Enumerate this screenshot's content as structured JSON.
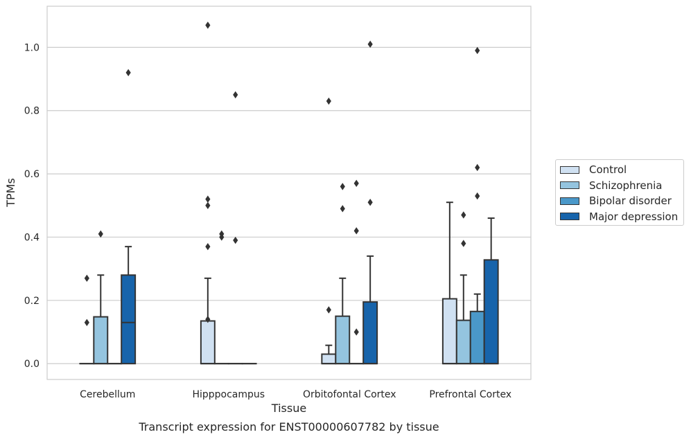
{
  "chart_data": {
    "type": "box",
    "title": "Transcript expression for ENST00000607782 by tissue",
    "xlabel": "Tissue",
    "ylabel": "TPMs",
    "ylim": [
      -0.05,
      1.13
    ],
    "yticks": [
      "0.0",
      "0.2",
      "0.4",
      "0.6",
      "0.8",
      "1.0"
    ],
    "grid": "horizontal",
    "legend_position": "right",
    "categories": [
      "Cerebellum",
      "Hipppocampus",
      "Orbitofontal Cortex",
      "Prefrontal Cortex"
    ],
    "series": [
      {
        "name": "Control",
        "color": "#d0e1f2",
        "boxes": [
          {
            "q1": 0,
            "median": 0,
            "q3": 0,
            "whisker_low": 0,
            "whisker_high": 0,
            "outliers": [
              0.13,
              0.27
            ]
          },
          {
            "q1": 0,
            "median": 0,
            "q3": 0.135,
            "whisker_low": 0,
            "whisker_high": 0.27,
            "outliers": [
              0.14,
              0.37,
              0.5,
              0.52,
              1.07
            ]
          },
          {
            "q1": 0,
            "median": 0,
            "q3": 0.03,
            "whisker_low": 0,
            "whisker_high": 0.058,
            "outliers": [
              0.17,
              0.83
            ]
          },
          {
            "q1": 0,
            "median": 0,
            "q3": 0.205,
            "whisker_low": 0,
            "whisker_high": 0.51,
            "outliers": []
          }
        ]
      },
      {
        "name": "Schizophrenia",
        "color": "#94c4df",
        "boxes": [
          {
            "q1": 0,
            "median": 0,
            "q3": 0.148,
            "whisker_low": 0,
            "whisker_high": 0.28,
            "outliers": [
              0.41
            ]
          },
          {
            "q1": 0,
            "median": 0,
            "q3": 0,
            "whisker_low": 0,
            "whisker_high": 0,
            "outliers": [
              0.4,
              0.41
            ]
          },
          {
            "q1": 0,
            "median": 0,
            "q3": 0.15,
            "whisker_low": 0,
            "whisker_high": 0.27,
            "outliers": [
              0.49,
              0.56
            ]
          },
          {
            "q1": 0,
            "median": 0,
            "q3": 0.137,
            "whisker_low": 0,
            "whisker_high": 0.28,
            "outliers": [
              0.38,
              0.47
            ]
          }
        ]
      },
      {
        "name": "Bipolar disorder",
        "color": "#4a98c9",
        "boxes": [
          {
            "q1": 0,
            "median": 0,
            "q3": 0,
            "whisker_low": 0,
            "whisker_high": 0,
            "outliers": []
          },
          {
            "q1": 0,
            "median": 0,
            "q3": 0,
            "whisker_low": 0,
            "whisker_high": 0,
            "outliers": [
              0.39,
              0.85
            ]
          },
          {
            "q1": 0,
            "median": 0,
            "q3": 0,
            "whisker_low": 0,
            "whisker_high": 0,
            "outliers": [
              0.1,
              0.42,
              0.57
            ]
          },
          {
            "q1": 0,
            "median": 0,
            "q3": 0.165,
            "whisker_low": 0,
            "whisker_high": 0.22,
            "outliers": [
              0.53,
              0.62,
              0.99
            ]
          }
        ]
      },
      {
        "name": "Major depression",
        "color": "#1764ab",
        "boxes": [
          {
            "q1": 0,
            "median": 0.13,
            "q3": 0.28,
            "whisker_low": 0,
            "whisker_high": 0.37,
            "outliers": [
              0.92
            ]
          },
          {
            "q1": 0,
            "median": 0,
            "q3": 0,
            "whisker_low": 0,
            "whisker_high": 0,
            "outliers": []
          },
          {
            "q1": 0,
            "median": 0,
            "q3": 0.195,
            "whisker_low": 0,
            "whisker_high": 0.34,
            "outliers": [
              0.51,
              1.01
            ]
          },
          {
            "q1": 0,
            "median": 0,
            "q3": 0.328,
            "whisker_low": 0,
            "whisker_high": 0.46,
            "outliers": []
          }
        ]
      }
    ]
  }
}
